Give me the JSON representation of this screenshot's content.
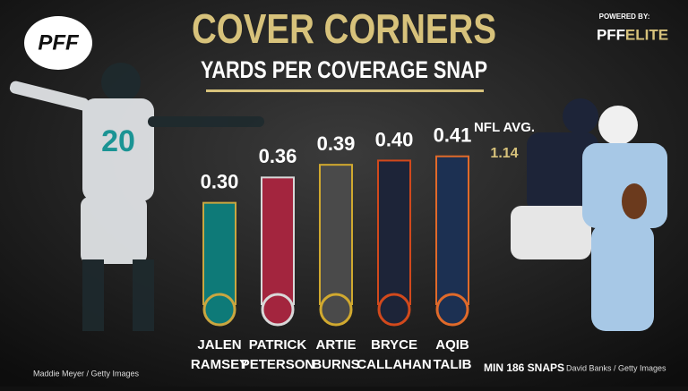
{
  "chart_data": {
    "type": "bar",
    "title": "COVER CORNERS",
    "subtitle": "YARDS PER COVERAGE SNAP",
    "logo": "PFF",
    "powered_by": "POWERED BY:",
    "powered_brand": [
      "PFF",
      "ELITE"
    ],
    "categories": [
      [
        "JALEN",
        "RAMSEY"
      ],
      [
        "PATRICK",
        "PETERSON"
      ],
      [
        "ARTIE",
        "BURNS"
      ],
      [
        "BRYCE",
        "CALLAHAN"
      ],
      [
        "AQIB",
        "TALIB"
      ]
    ],
    "values": [
      0.3,
      0.36,
      0.39,
      0.4,
      0.41
    ],
    "value_labels": [
      "0.30",
      "0.36",
      "0.39",
      "0.40",
      "0.41"
    ],
    "colors": [
      "#0e7a78",
      "#a3253e",
      "#4a4a4a",
      "#1d2438",
      "#1c3052"
    ],
    "edge_colors": [
      "#c9a640",
      "#d8d8d8",
      "#d1a92f",
      "#d2491c",
      "#e06a2a"
    ],
    "ylim": [
      0.06,
      0.42
    ],
    "nfl_avg": {
      "label": "NFL AVG.",
      "value": 1.14
    },
    "note": "MIN 186 SNAPS",
    "credits": [
      "Maddie Meyer / Getty Images",
      "David Banks / Getty Images"
    ]
  }
}
